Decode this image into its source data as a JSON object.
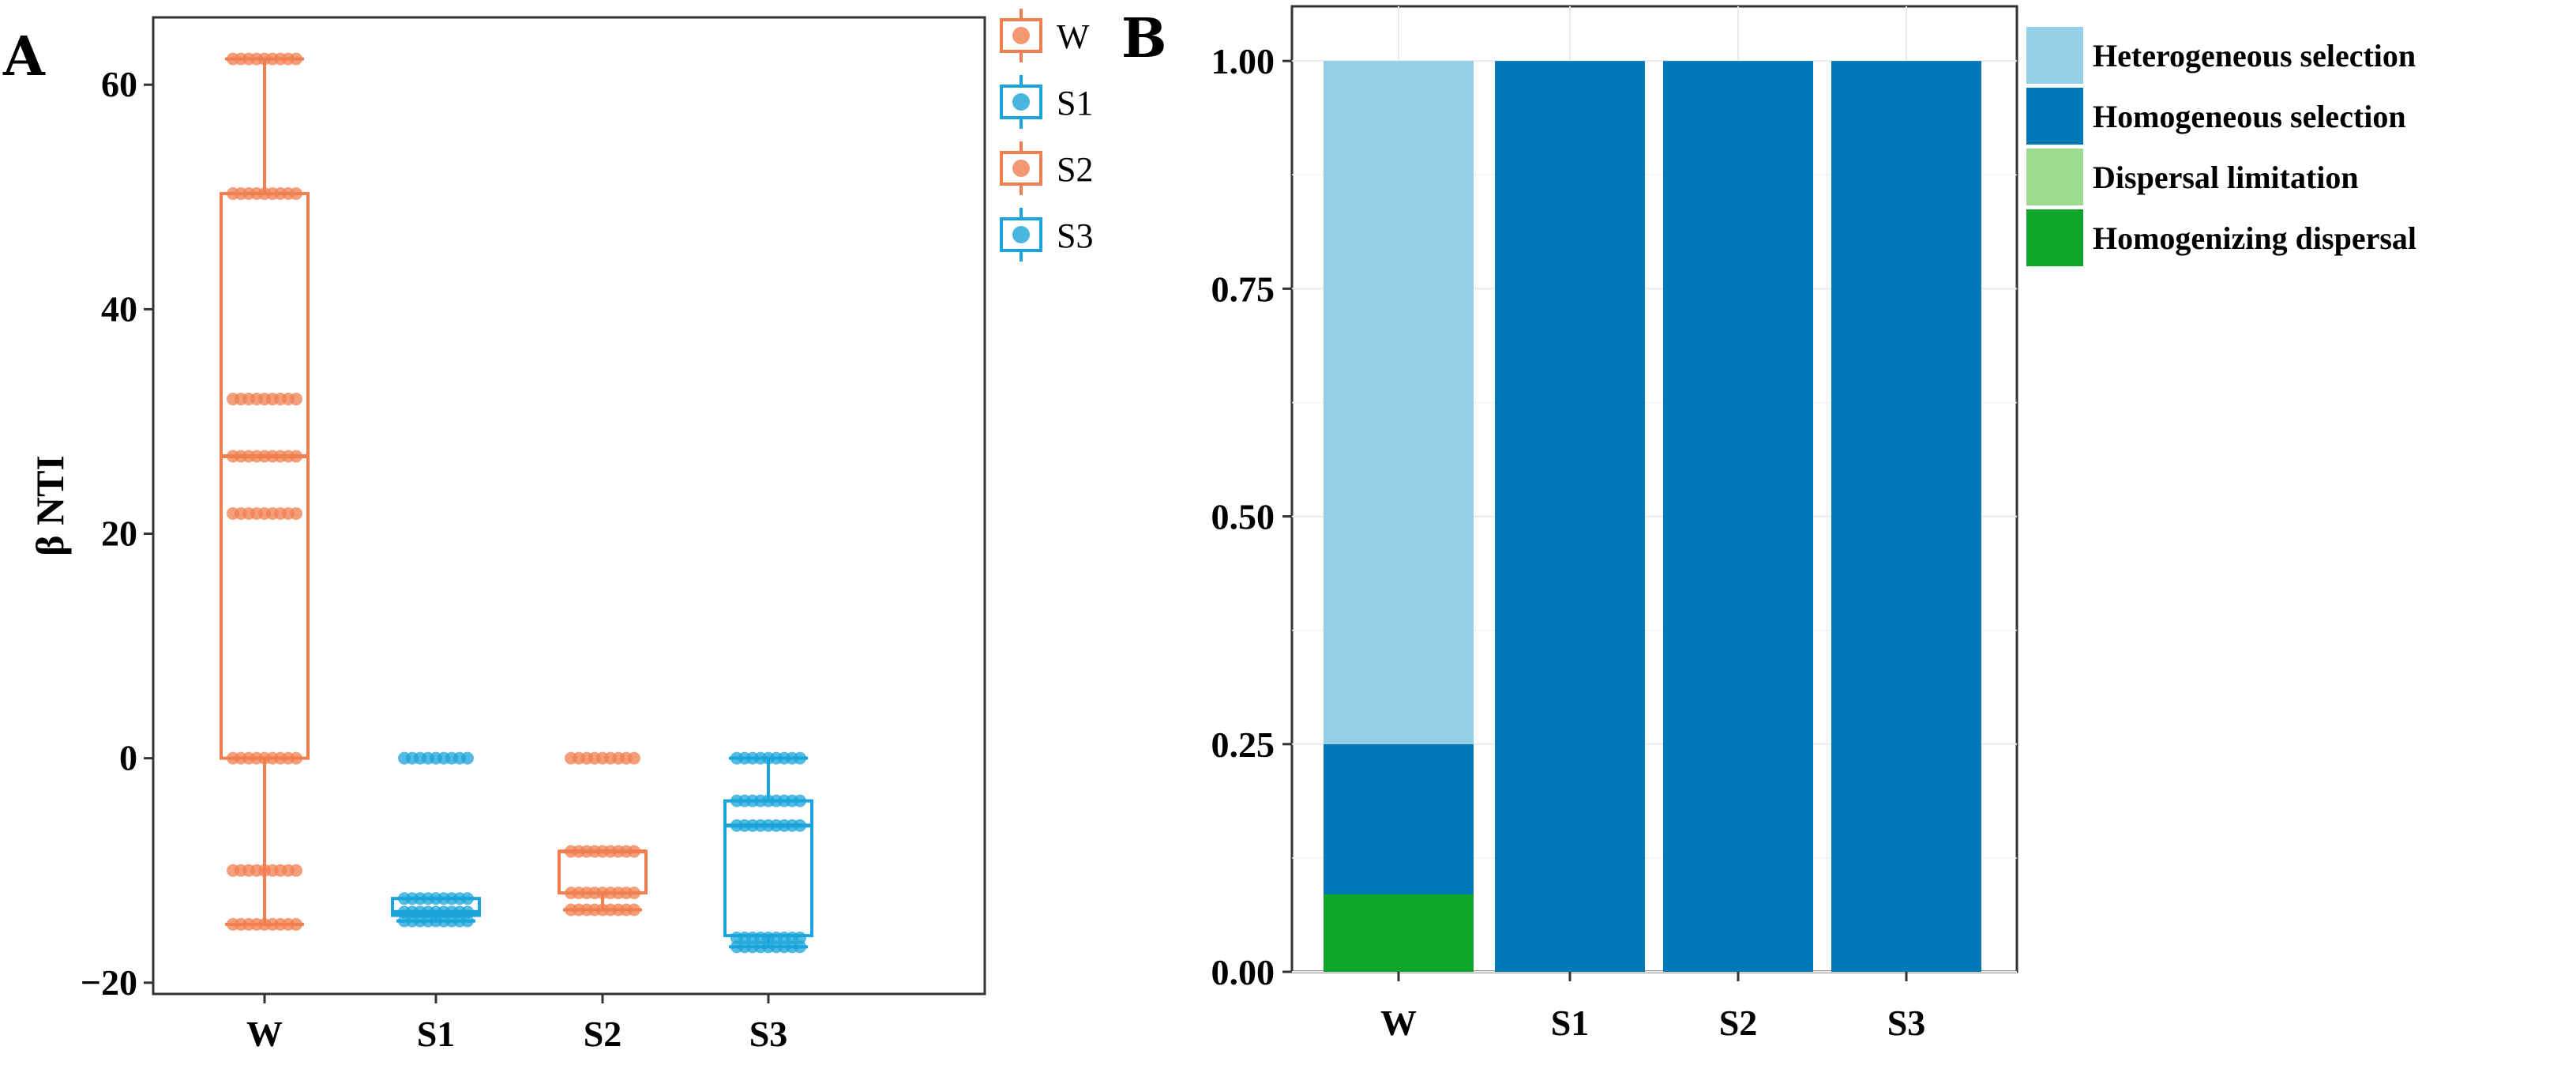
{
  "chart_data": [
    {
      "panel": "A",
      "type": "box",
      "ylabel": "β NTI",
      "xlabel": "",
      "categories": [
        "W",
        "S1",
        "S2",
        "S3"
      ],
      "yticks": [
        -20,
        0,
        20,
        40,
        60
      ],
      "ylim": [
        -21,
        66
      ],
      "legend": {
        "position": "top-right",
        "entries": [
          "W",
          "S1",
          "S2",
          "S3"
        ]
      },
      "colors": {
        "W": "#f07f4f",
        "S1": "#1aa4d9",
        "S2": "#f07f4f",
        "S3": "#1aa4d9"
      },
      "boxes": [
        {
          "group": "W",
          "whisker_low": -14.8,
          "q1": 0.0,
          "median": 26.9,
          "q3": 50.3,
          "whisker_high": 62.3
        },
        {
          "group": "S1",
          "whisker_low": -14.5,
          "q1": -14.0,
          "median": -13.7,
          "q3": -12.5,
          "whisker_high": -12.5
        },
        {
          "group": "S2",
          "whisker_low": -13.5,
          "q1": -12.0,
          "median": -8.3,
          "q3": -8.3,
          "whisker_high": -8.3
        },
        {
          "group": "S3",
          "whisker_low": -16.8,
          "q1": -15.8,
          "median": -6.0,
          "q3": -3.8,
          "whisker_high": 0.0
        }
      ],
      "points": [
        {
          "group": "W",
          "values": [
            62.3,
            50.3,
            32.0,
            26.9,
            21.8,
            0.0,
            -10.0,
            -14.8
          ]
        },
        {
          "group": "S1",
          "values": [
            0.0,
            -12.5,
            -13.7,
            -14.5
          ]
        },
        {
          "group": "S2",
          "values": [
            0.0,
            -8.3,
            -12.0,
            -13.5
          ]
        },
        {
          "group": "S3",
          "values": [
            0.0,
            -3.8,
            -6.0,
            -16.0,
            -16.8
          ]
        }
      ]
    },
    {
      "panel": "B",
      "type": "stacked_bar",
      "xlabel": "",
      "ylabel": "",
      "categories": [
        "W",
        "S1",
        "S2",
        "S3"
      ],
      "yticks": [
        "0.00",
        "0.25",
        "0.50",
        "0.75",
        "1.00"
      ],
      "ylim": [
        0,
        1.06
      ],
      "grid": true,
      "legend": {
        "position": "right"
      },
      "series": [
        {
          "name": "Homogenizing dispersal",
          "color": "#0ea52a",
          "values": [
            0.085,
            0,
            0,
            0
          ]
        },
        {
          "name": "Dispersal limitation",
          "color": "#9ddc8e",
          "values": [
            0,
            0,
            0,
            0
          ]
        },
        {
          "name": "Homogeneous selection",
          "color": "#0077b6",
          "values": [
            0.165,
            1.0,
            1.0,
            1.0
          ]
        },
        {
          "name": "Heterogeneous selection",
          "color": "#93d0e8",
          "values": [
            0.75,
            0,
            0,
            0
          ]
        }
      ],
      "legend_order": [
        "Heterogeneous selection",
        "Homogeneous selection",
        "Dispersal limitation",
        "Homogenizing dispersal"
      ]
    }
  ]
}
